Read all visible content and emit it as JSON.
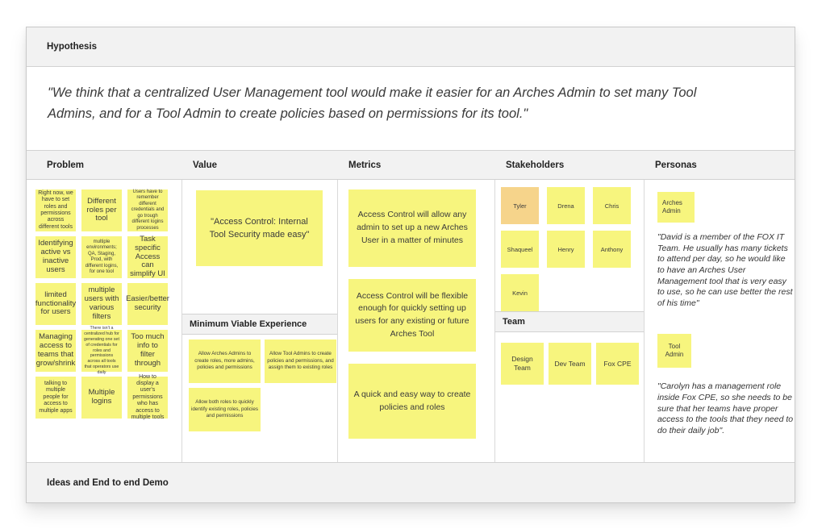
{
  "colors": {
    "sticky_yellow": "#f7f57e",
    "sticky_orange": "#f6d48b",
    "band_gray": "#f2f2f2"
  },
  "hypothesis": {
    "title": "Hypothesis",
    "quote": "\"We think that a centralized User Management tool would make it easier for an Arches Admin to set many Tool Admins, and for a Tool Admin to create policies based on permissions for its tool.\""
  },
  "problem": {
    "title": "Problem",
    "notes": [
      "Right now, we have to set roles and permissions across different tools",
      "Different roles per tool",
      "Users have to remember different credentials and go trough different logins processes",
      "Identifying active vs inactive users",
      "multiple environments; QA, Staging, Prod, with different logins, for one tool",
      "Task specific Access can simplify UI",
      "limited functionality for users",
      "multiple users with various filters",
      "Easier/better security",
      "Managing access to teams that grow/shrink",
      "There isn't a centralized hub for generating one set of credentials for roles and permissions across all tools that operators use daily",
      "Too much info to filter through",
      "talking to multiple people for access to multiple apps",
      "Multiple logins",
      "How to display a user's permissions who has access to multiple tools"
    ]
  },
  "value": {
    "title": "Value",
    "main_note": "\"Access Control: Internal Tool Security made easy\"",
    "mve": {
      "title": "Minimum Viable Experience",
      "notes": [
        "Allow Arches Admins to create roles, more admins, policies and permissions",
        "Allow Tool Admins to create policies and permissions, and assign them to existing roles",
        "Allow both roles to quickly identify existing roles, policies and permissions"
      ]
    }
  },
  "metrics": {
    "title": "Metrics",
    "notes": [
      "Access Control will allow any admin to set up a new Arches User in a matter of minutes",
      "Access Control will be flexible enough for quickly setting up users for any existing or future Arches Tool",
      "A quick and easy way to create policies and roles"
    ]
  },
  "stakeholders": {
    "title": "Stakeholders",
    "people": [
      "Tyler",
      "Drena",
      "Chris",
      "Shaqueel",
      "Henry",
      "Anthony",
      "Kevin"
    ],
    "team": {
      "title": "Team",
      "members": [
        "Design Team",
        "Dev Team",
        "Fox CPE"
      ]
    }
  },
  "personas": {
    "title": "Personas",
    "entries": [
      {
        "tag": "Arches Admin",
        "quote": "\"David is a member of the FOX IT Team. He usually has many tickets to attend per day, so he would like to have an Arches User Management tool that is very easy to use, so he can use better the rest of his time\""
      },
      {
        "tag": "Tool Admin",
        "quote": "\"Carolyn has a management role inside Fox CPE, so she needs to be sure that her teams have proper access to the tools that they need to do their daily job\"."
      }
    ]
  },
  "footer": {
    "title": "Ideas and End to end Demo"
  }
}
